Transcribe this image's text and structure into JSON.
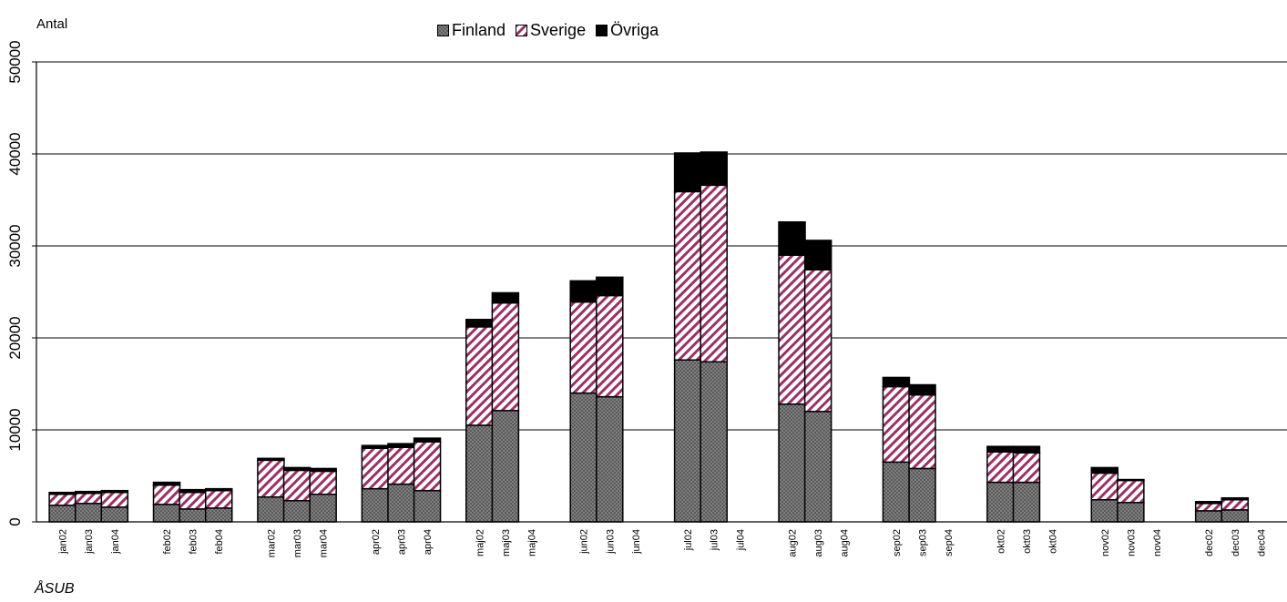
{
  "chart_data": {
    "type": "bar",
    "stacked": true,
    "title": "",
    "ylabel": "Antal",
    "source": "ÅSUB",
    "ylim": [
      0,
      50000
    ],
    "yticks": [
      0,
      10000,
      20000,
      30000,
      40000,
      50000
    ],
    "grid": true,
    "legend_position": "top-center",
    "colors": {
      "finland": "#808080",
      "sverige": "#ffffff",
      "sverige_hatch": "#993366",
      "ovriga": "#000000"
    },
    "categories": [
      "jan02",
      "jan03",
      "jan04",
      "feb02",
      "feb03",
      "feb04",
      "mar02",
      "mar03",
      "mar04",
      "apr02",
      "apr03",
      "apr04",
      "maj02",
      "maj03",
      "maj04",
      "jun02",
      "jun03",
      "jun04",
      "jul02",
      "jul03",
      "jul04",
      "aug02",
      "aug03",
      "aug04",
      "sep02",
      "sep03",
      "sep04",
      "okt02",
      "okt03",
      "okt04",
      "nov02",
      "nov03",
      "nov04",
      "dec02",
      "dec03",
      "dec04"
    ],
    "series": [
      {
        "name": "Finland",
        "values": [
          1800,
          2000,
          1600,
          1900,
          1400,
          1500,
          2700,
          2300,
          3000,
          3600,
          4100,
          3400,
          10500,
          12100,
          null,
          14000,
          13600,
          null,
          17600,
          17400,
          null,
          12800,
          12000,
          null,
          6500,
          5800,
          null,
          4300,
          4300,
          null,
          2400,
          2100,
          null,
          1200,
          1300,
          null
        ]
      },
      {
        "name": "Sverige",
        "values": [
          1200,
          1100,
          1600,
          2100,
          1800,
          1900,
          4000,
          3300,
          2500,
          4400,
          4000,
          5300,
          10700,
          11700,
          null,
          9900,
          11000,
          null,
          18300,
          19200,
          null,
          16200,
          15400,
          null,
          8200,
          8000,
          null,
          3300,
          3200,
          null,
          2900,
          2400,
          null,
          800,
          1100,
          null
        ]
      },
      {
        "name": "Övriga",
        "values": [
          200,
          200,
          200,
          300,
          300,
          200,
          200,
          300,
          300,
          300,
          400,
          400,
          800,
          1100,
          null,
          2300,
          2000,
          null,
          4200,
          3600,
          null,
          3600,
          3200,
          null,
          1000,
          1100,
          null,
          600,
          700,
          null,
          600,
          100,
          null,
          200,
          200,
          null
        ]
      }
    ]
  }
}
